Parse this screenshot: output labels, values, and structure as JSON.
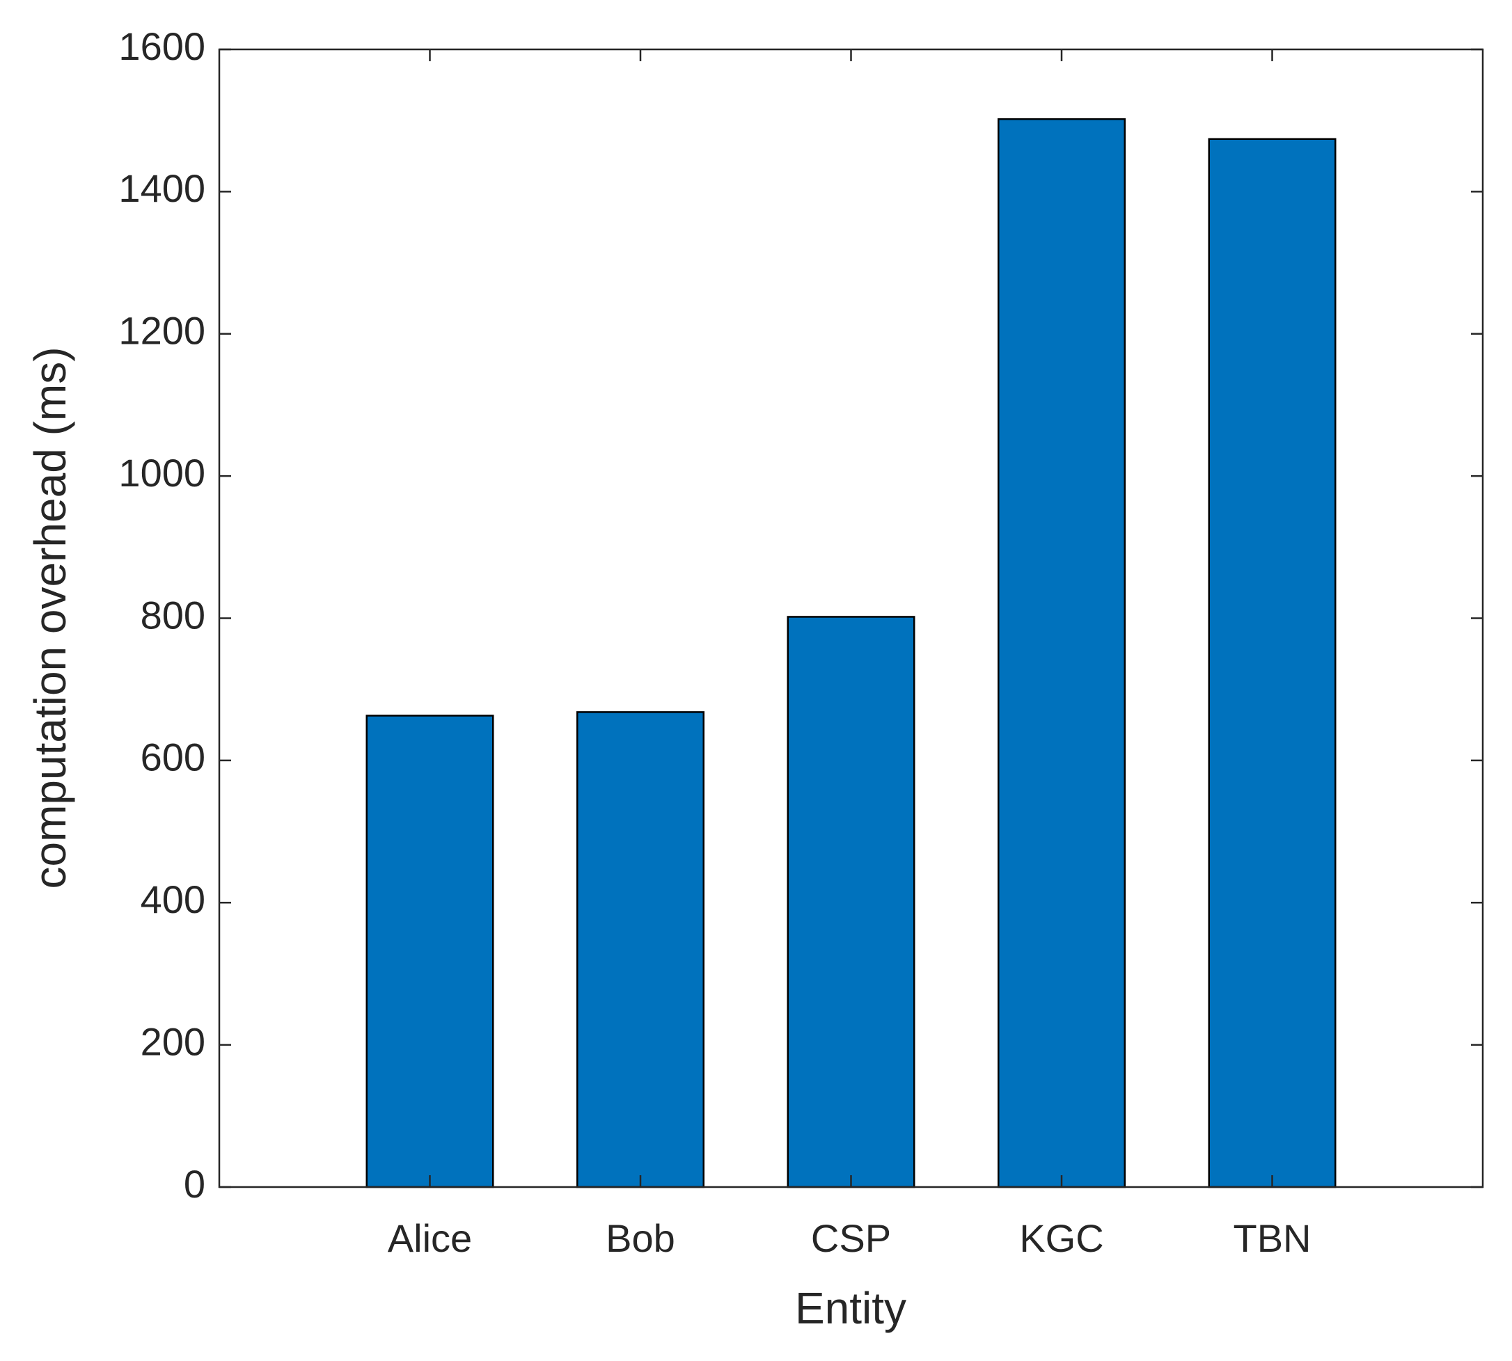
{
  "chart_data": {
    "type": "bar",
    "xlabel": "Entity",
    "ylabel": "computation overhead (ms)",
    "categories": [
      "Alice",
      "Bob",
      "CSP",
      "KGC",
      "TBN"
    ],
    "values": [
      663,
      668,
      802,
      1502,
      1474
    ],
    "color": "#0072bd",
    "ylim": [
      0,
      1600
    ],
    "yticks": [
      0,
      200,
      400,
      600,
      800,
      1000,
      1200,
      1400,
      1600
    ]
  }
}
